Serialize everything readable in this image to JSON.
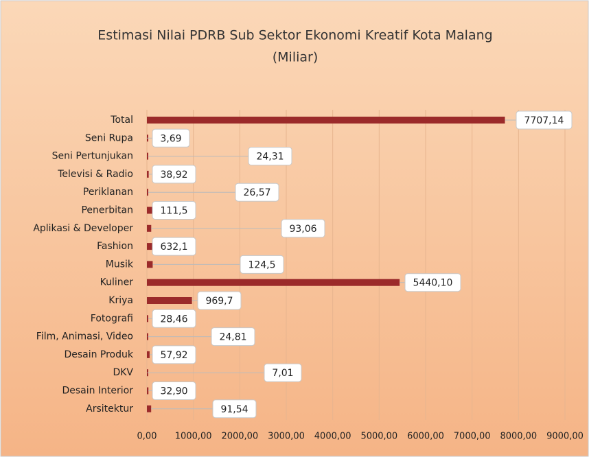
{
  "chart_data": {
    "type": "barh",
    "title": "Estimasi Nilai PDRB Sub Sektor Ekonomi Kreatif Kota Malang",
    "subtitle": "(Miliar)",
    "categories": [
      "Total",
      "Seni Rupa",
      "Seni Pertunjukan",
      "Televisi & Radio",
      "Periklanan",
      "Penerbitan",
      "Aplikasi & Developer",
      "Fashion",
      "Musik",
      "Kuliner",
      "Kriya",
      "Fotografi",
      "Film, Animasi, Video",
      "Desain Produk",
      "DKV",
      "Desain Interior",
      "Arsitektur"
    ],
    "values": [
      7707.14,
      3.69,
      24.31,
      38.92,
      26.57,
      111.5,
      93.06,
      632.1,
      124.5,
      5440.1,
      969.7,
      28.46,
      24.81,
      57.92,
      7.01,
      32.9,
      91.54
    ],
    "value_labels": [
      "7707,14",
      "3,69",
      "24,31",
      "38,92",
      "26,57",
      "111,5",
      "93,06",
      "632,1",
      "124,5",
      "5440,10",
      "969,7",
      "28,46",
      "24,81",
      "57,92",
      "7,01",
      "32,90",
      "91,54"
    ],
    "color": "#9b2a2a",
    "xlim": [
      0,
      9000
    ],
    "xticks": [
      {
        "value": 0,
        "label": "0,00"
      },
      {
        "value": 1000,
        "label": "1000,00"
      },
      {
        "value": 2000,
        "label": "2000,00"
      },
      {
        "value": 3000,
        "label": "3000,00"
      },
      {
        "value": 4000,
        "label": "4000,00"
      },
      {
        "value": 5000,
        "label": "5000,00"
      },
      {
        "value": 6000,
        "label": "6000,00"
      },
      {
        "value": 7000,
        "label": "7000,00"
      },
      {
        "value": 8000,
        "label": "8000,00"
      },
      {
        "value": 9000,
        "label": "9000,00"
      }
    ],
    "grid": true
  }
}
